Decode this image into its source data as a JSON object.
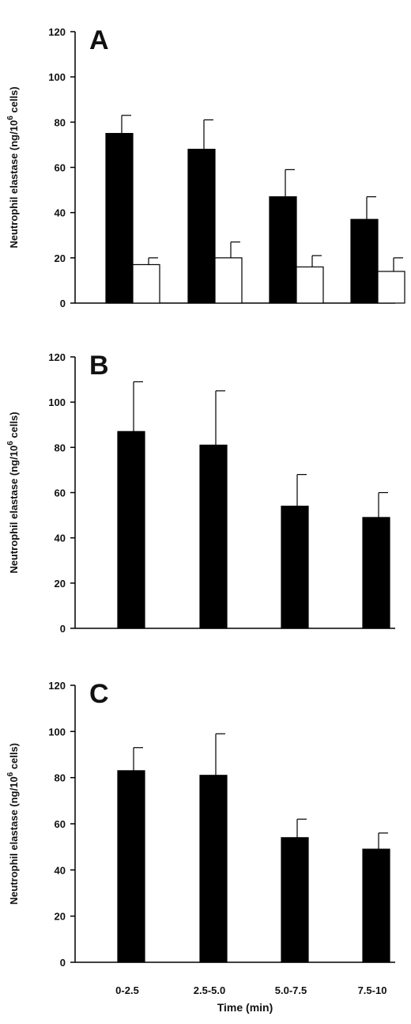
{
  "chart_data": [
    {
      "type": "bar",
      "panel_label": "A",
      "categories": [
        "0-2.5",
        "2.5-5.0",
        "5.0-7.5",
        "7.5-10"
      ],
      "series": [
        {
          "values": [
            75,
            68,
            47,
            37
          ],
          "errors": [
            8,
            13,
            12,
            10
          ],
          "color": "#000000"
        },
        {
          "values": [
            17,
            20,
            16,
            14
          ],
          "errors": [
            3,
            7,
            5,
            6
          ],
          "color": "#ffffff"
        }
      ],
      "ylabel": "Neutrophil elastase (ng/10",
      "ylabel_sup": "6",
      "ylabel_end": " cells)",
      "ylim": [
        0,
        120
      ],
      "yticks": [
        "0",
        "20",
        "40",
        "60",
        "80",
        "100",
        "120"
      ],
      "xlabel": "",
      "show_xticklabels": false
    },
    {
      "type": "bar",
      "panel_label": "B",
      "categories": [
        "0-2.5",
        "2.5-5.0",
        "5.0-7.5",
        "7.5-10"
      ],
      "series": [
        {
          "values": [
            87,
            81,
            54,
            49
          ],
          "errors": [
            22,
            24,
            14,
            11
          ],
          "color": "#000000"
        }
      ],
      "ylabel": "Neutrophil elastase (ng/10",
      "ylabel_sup": "6",
      "ylabel_end": " cells)",
      "ylim": [
        0,
        120
      ],
      "yticks": [
        "0",
        "20",
        "40",
        "60",
        "80",
        "100",
        "120"
      ],
      "xlabel": "",
      "show_xticklabels": false
    },
    {
      "type": "bar",
      "panel_label": "C",
      "categories": [
        "0-2.5",
        "2.5-5.0",
        "5.0-7.5",
        "7.5-10"
      ],
      "series": [
        {
          "values": [
            83,
            81,
            54,
            49
          ],
          "errors": [
            10,
            18,
            8,
            7
          ],
          "color": "#000000"
        }
      ],
      "ylabel": "Neutrophil elastase (ng/10",
      "ylabel_sup": "6",
      "ylabel_end": " cells)",
      "ylim": [
        0,
        120
      ],
      "yticks": [
        "0",
        "20",
        "40",
        "60",
        "80",
        "100",
        "120"
      ],
      "xlabel": "Time (min)",
      "show_xticklabels": true
    }
  ]
}
